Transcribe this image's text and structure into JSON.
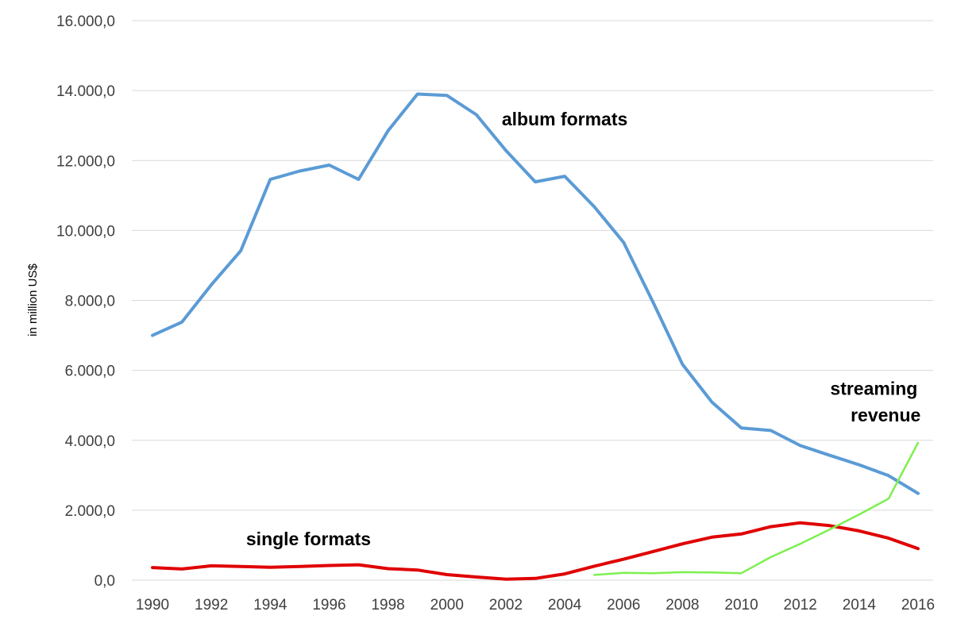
{
  "chart_data": {
    "type": "line",
    "title": "",
    "xlabel": "",
    "ylabel": "in million US$",
    "xlim": [
      1990,
      2016
    ],
    "ylim": [
      0,
      16000
    ],
    "y_ticks": [
      0,
      2000,
      4000,
      6000,
      8000,
      10000,
      12000,
      14000,
      16000
    ],
    "y_tick_labels": [
      "0,0",
      "2.000,0",
      "4.000,0",
      "6.000,0",
      "8.000,0",
      "10.000,0",
      "12.000,0",
      "14.000,0",
      "16.000,0"
    ],
    "x_ticks": [
      1990,
      1992,
      1994,
      1996,
      1998,
      2000,
      2002,
      2004,
      2006,
      2008,
      2010,
      2012,
      2014,
      2016
    ],
    "x_tick_labels": [
      "1990",
      "1992",
      "1994",
      "1996",
      "1998",
      "2000",
      "2002",
      "2004",
      "2006",
      "2008",
      "2010",
      "2012",
      "2014",
      "2016"
    ],
    "grid": "horizontal",
    "legend": "none",
    "series": [
      {
        "name": "album formats",
        "color": "#5b9bd5",
        "x": [
          1990,
          1991,
          1992,
          1993,
          1994,
          1995,
          1996,
          1997,
          1998,
          1999,
          2000,
          2001,
          2002,
          2003,
          2004,
          2005,
          2006,
          2007,
          2008,
          2009,
          2010,
          2011,
          2012,
          2013,
          2014,
          2015,
          2016
        ],
        "values": [
          7000,
          7380,
          8450,
          9420,
          11460,
          11700,
          11870,
          11460,
          12850,
          13900,
          13860,
          13310,
          12290,
          11390,
          11550,
          10680,
          9660,
          7950,
          6170,
          5090,
          4350,
          4280,
          3850,
          3570,
          3300,
          2990,
          2480
        ]
      },
      {
        "name": "single formats",
        "color": "#e00000",
        "x": [
          1990,
          1991,
          1992,
          1993,
          1994,
          1995,
          1996,
          1997,
          1998,
          1999,
          2000,
          2001,
          2002,
          2003,
          2004,
          2005,
          2006,
          2007,
          2008,
          2009,
          2010,
          2011,
          2012,
          2013,
          2014,
          2015,
          2016
        ],
        "values": [
          360,
          320,
          410,
          390,
          370,
          390,
          420,
          440,
          330,
          290,
          160,
          90,
          30,
          50,
          180,
          400,
          600,
          820,
          1040,
          1230,
          1320,
          1530,
          1640,
          1560,
          1410,
          1200,
          900
        ]
      },
      {
        "name": "streaming revenue",
        "color": "#7df04f",
        "x": [
          2005,
          2006,
          2007,
          2008,
          2009,
          2010,
          2011,
          2012,
          2013,
          2014,
          2015,
          2016
        ],
        "values": [
          150,
          210,
          200,
          230,
          220,
          200,
          660,
          1040,
          1450,
          1880,
          2330,
          3930
        ]
      }
    ],
    "annotations": [
      {
        "text": "album formats",
        "x": 2004.0,
        "y": 13000
      },
      {
        "text": "single formats",
        "x": 1995.3,
        "y": 1000
      },
      {
        "text": "streaming",
        "x": 2014.5,
        "y": 5300
      },
      {
        "text": "revenue",
        "x": 2014.9,
        "y": 4540
      }
    ]
  }
}
